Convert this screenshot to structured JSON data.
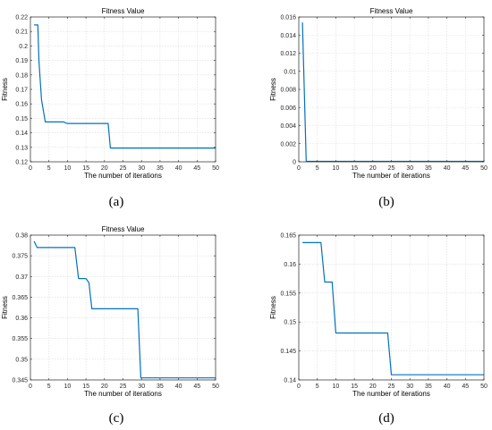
{
  "figure": {
    "panel_labels": [
      "(a)",
      "(b)",
      "(c)",
      "(d)"
    ]
  },
  "colors": {
    "line": "#0072BD",
    "grid": "#dcdcdc",
    "axis": "#262626"
  },
  "chart_data": [
    {
      "type": "line",
      "title": "Fitness Value",
      "xlabel": "The number of iterations",
      "ylabel": "Fitness",
      "xlim": [
        0,
        50
      ],
      "ylim": [
        0.12,
        0.22
      ],
      "xticks": [
        "0",
        "5",
        "10",
        "15",
        "20",
        "25",
        "30",
        "35",
        "40",
        "45",
        "50"
      ],
      "yticks": [
        "0.12",
        "0.13",
        "0.14",
        "0.15",
        "0.16",
        "0.17",
        "0.18",
        "0.19",
        "0.2",
        "0.21",
        "0.22"
      ],
      "grid": true,
      "x": [
        1,
        2,
        2.3,
        3,
        4,
        5,
        9,
        9.6,
        10,
        21,
        21.6,
        50
      ],
      "y": [
        0.2145,
        0.2145,
        0.19,
        0.163,
        0.1475,
        0.1475,
        0.1475,
        0.1467,
        0.1465,
        0.1465,
        0.1295,
        0.1295
      ]
    },
    {
      "type": "line",
      "title": "Fitness Value",
      "xlabel": "The number of iterations",
      "ylabel": "Fitness",
      "xlim": [
        0,
        50
      ],
      "ylim": [
        0,
        0.016
      ],
      "xticks": [
        "0",
        "5",
        "10",
        "15",
        "20",
        "25",
        "30",
        "35",
        "40",
        "45",
        "50"
      ],
      "yticks": [
        "0",
        "0.002",
        "0.004",
        "0.006",
        "0.008",
        "0.01",
        "0.012",
        "0.014",
        "0.016"
      ],
      "grid": true,
      "x": [
        1,
        2,
        50
      ],
      "y": [
        0.0154,
        5e-05,
        5e-05
      ]
    },
    {
      "type": "line",
      "title": "Fitness Value",
      "xlabel": "The number of iterations",
      "ylabel": "Fitness",
      "xlim": [
        0,
        50
      ],
      "ylim": [
        0.345,
        0.38
      ],
      "xticks": [
        "0",
        "5",
        "10",
        "15",
        "20",
        "25",
        "30",
        "35",
        "40",
        "45",
        "50"
      ],
      "yticks": [
        "0.345",
        "0.35",
        "0.355",
        "0.36",
        "0.365",
        "0.37",
        "0.375",
        "0.38"
      ],
      "grid": true,
      "x": [
        1,
        1.8,
        12,
        13,
        15,
        15.8,
        16.6,
        17,
        29,
        29.8,
        50
      ],
      "y": [
        0.3785,
        0.377,
        0.377,
        0.3695,
        0.3695,
        0.3685,
        0.3622,
        0.3622,
        0.3622,
        0.3455,
        0.3455
      ]
    },
    {
      "type": "line",
      "title": "",
      "xlabel": "The number of iterations",
      "ylabel": "Fitness",
      "xlim": [
        0,
        50
      ],
      "ylim": [
        0.14,
        0.165
      ],
      "xticks": [
        "0",
        "5",
        "10",
        "15",
        "20",
        "25",
        "30",
        "35",
        "40",
        "45",
        "50"
      ],
      "yticks": [
        "0.14",
        "0.145",
        "0.15",
        "0.155",
        "0.16",
        "0.165"
      ],
      "grid": true,
      "x": [
        1,
        6,
        7,
        9,
        10,
        24,
        25,
        50
      ],
      "y": [
        0.1637,
        0.1637,
        0.1569,
        0.1569,
        0.1481,
        0.1481,
        0.1409,
        0.1409
      ]
    }
  ]
}
